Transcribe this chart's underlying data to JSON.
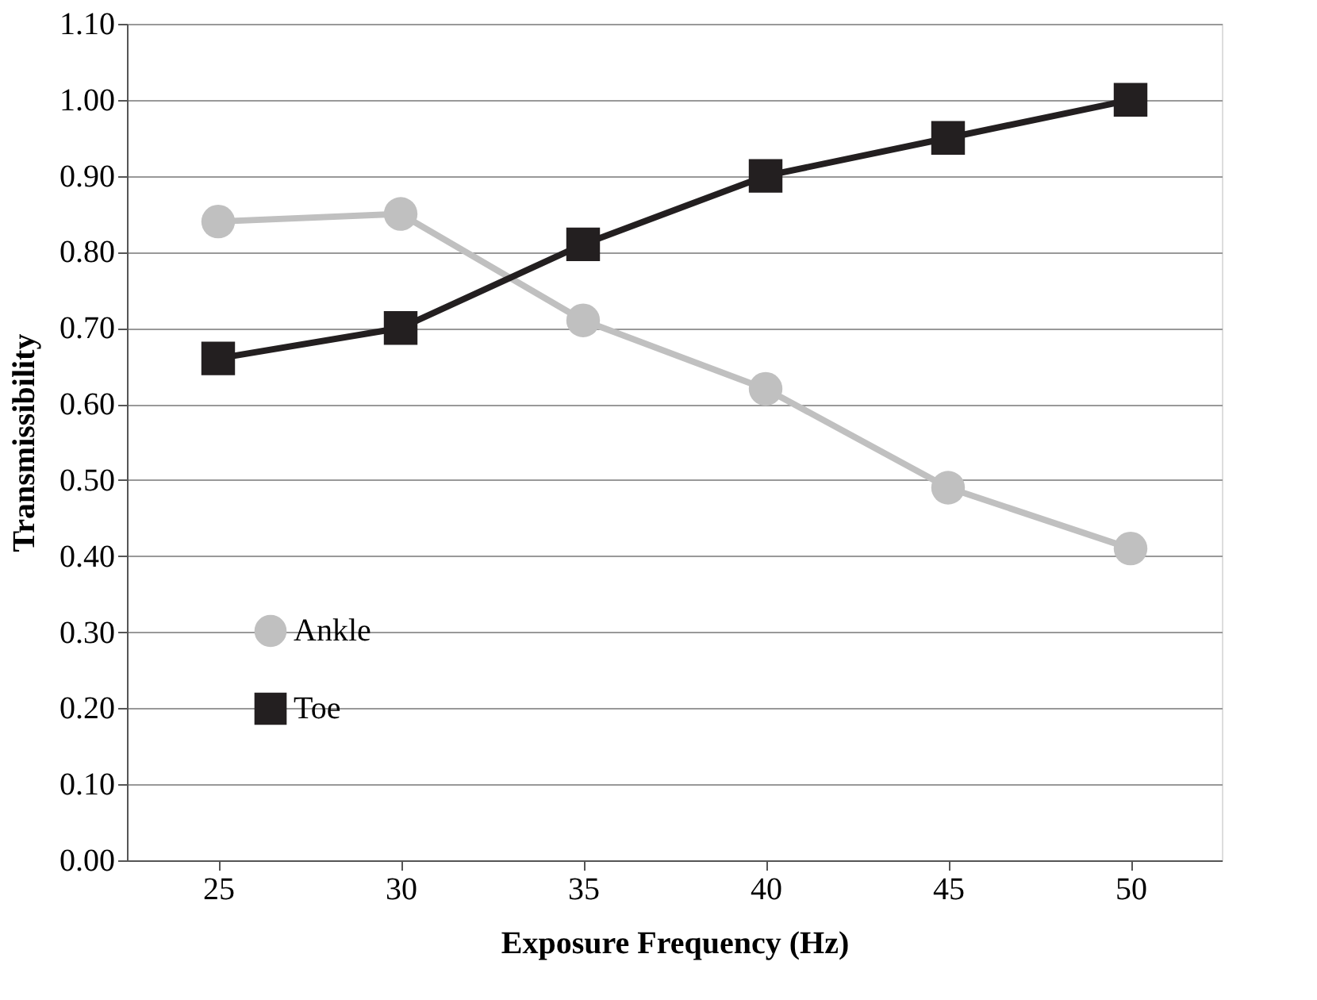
{
  "chart_data": {
    "type": "line",
    "xlabel": "Exposure Frequency (Hz)",
    "ylabel": "Transmissibility",
    "categories": [
      "25",
      "30",
      "35",
      "40",
      "45",
      "50"
    ],
    "series": [
      {
        "name": "Ankle",
        "color": "#c0c0c0",
        "marker": "circle",
        "values": [
          0.84,
          0.85,
          0.71,
          0.62,
          0.49,
          0.41
        ]
      },
      {
        "name": "Toe",
        "color": "#231f20",
        "marker": "square",
        "values": [
          0.66,
          0.7,
          0.81,
          0.9,
          0.95,
          1.0
        ]
      }
    ],
    "ylim": [
      0,
      1.1
    ],
    "yticks": [
      {
        "value": 0,
        "label": "0.00"
      },
      {
        "value": 0.1,
        "label": "0.10"
      },
      {
        "value": 0.2,
        "label": "0.20"
      },
      {
        "value": 0.3,
        "label": "0.30"
      },
      {
        "value": 0.4,
        "label": "0.40"
      },
      {
        "value": 0.5,
        "label": "0.50"
      },
      {
        "value": 0.6,
        "label": "0.60"
      },
      {
        "value": 0.7,
        "label": "0.70"
      },
      {
        "value": 0.8,
        "label": "0.80"
      },
      {
        "value": 0.9,
        "label": "0.90"
      },
      {
        "value": 1.0,
        "label": "1.00"
      },
      {
        "value": 1.1,
        "label": "1.10"
      }
    ],
    "grid": "y",
    "legend": "bottom left",
    "line_style": "solid"
  }
}
